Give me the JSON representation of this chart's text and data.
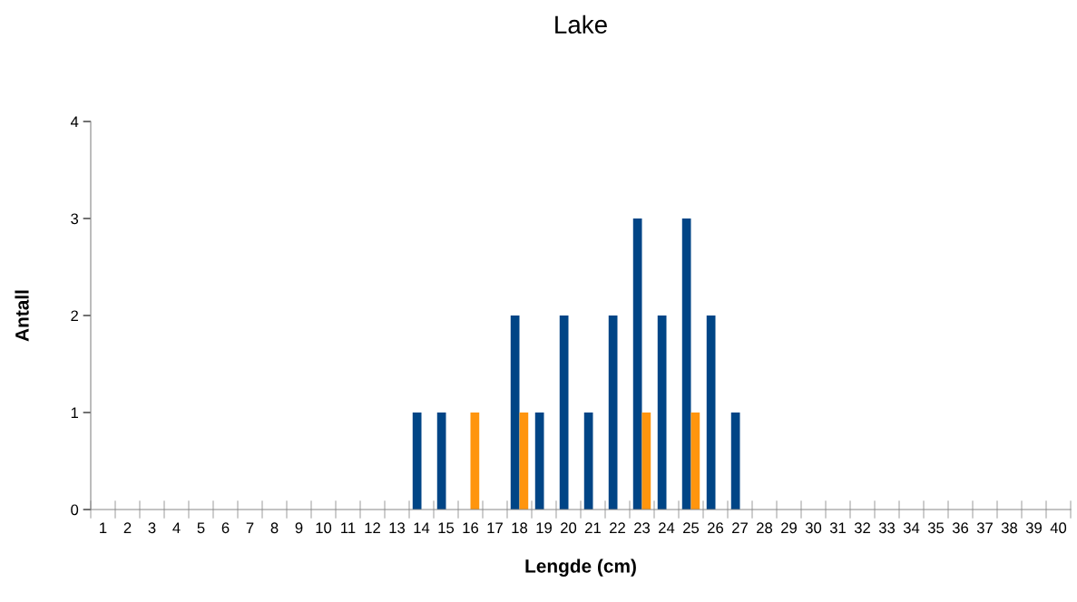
{
  "chart_data": {
    "type": "bar",
    "title": "Lake",
    "xlabel": "Lengde (cm)",
    "ylabel": "Antall",
    "categories": [
      "1",
      "2",
      "3",
      "4",
      "5",
      "6",
      "7",
      "8",
      "9",
      "10",
      "11",
      "12",
      "13",
      "14",
      "15",
      "16",
      "17",
      "18",
      "19",
      "20",
      "21",
      "22",
      "23",
      "24",
      "25",
      "26",
      "27",
      "28",
      "29",
      "30",
      "31",
      "32",
      "33",
      "34",
      "35",
      "36",
      "37",
      "38",
      "39",
      "40"
    ],
    "series": [
      {
        "color": "#004586",
        "values": [
          0,
          0,
          0,
          0,
          0,
          0,
          0,
          0,
          0,
          0,
          0,
          0,
          0,
          1,
          1,
          0,
          0,
          2,
          1,
          2,
          1,
          2,
          3,
          2,
          3,
          2,
          1,
          0,
          0,
          0,
          0,
          0,
          0,
          0,
          0,
          0,
          0,
          0,
          0,
          0
        ]
      },
      {
        "color": "#ff950e",
        "values": [
          0,
          0,
          0,
          0,
          0,
          0,
          0,
          0,
          0,
          0,
          0,
          0,
          0,
          0,
          0,
          1,
          0,
          1,
          0,
          0,
          0,
          0,
          1,
          0,
          1,
          0,
          0,
          0,
          0,
          0,
          0,
          0,
          0,
          0,
          0,
          0,
          0,
          0,
          0,
          0
        ]
      }
    ],
    "ylim": [
      0,
      4
    ],
    "yticks": [
      0,
      1,
      2,
      3,
      4
    ],
    "grid": false,
    "legend": false
  }
}
